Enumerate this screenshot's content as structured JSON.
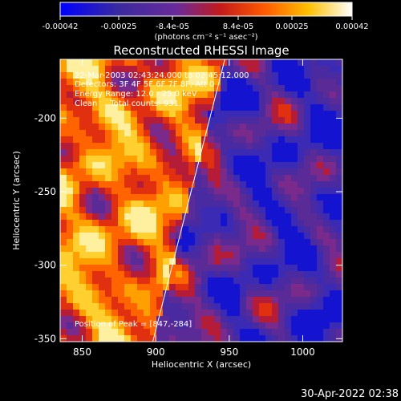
{
  "colorbar": {
    "tick_labels": [
      "-0.00042",
      "-0.00025",
      "-8.4e-05",
      "8.4e-05",
      "0.00025",
      "0.00042"
    ],
    "unit_label": "(photons cm⁻² s⁻¹ asec⁻²)",
    "range": [
      -0.00042,
      0.00042
    ]
  },
  "chart_data": {
    "type": "heatmap",
    "title": "Reconstructed RHESSI Image",
    "xlabel": "Heliocentric X (arcsec)",
    "ylabel": "Heliocentric Y (arcsec)",
    "xlim": [
      835,
      1027
    ],
    "ylim": [
      -352,
      -160
    ],
    "x_ticks": [
      850,
      900,
      950,
      1000
    ],
    "x_tick_labels": [
      "850",
      "900",
      "950",
      "1000"
    ],
    "y_ticks": [
      -200,
      -250,
      -300,
      -350
    ],
    "y_tick_labels": [
      "-200",
      "-250",
      "-300",
      "-350"
    ],
    "colormap": "rainbow-like (blue → purple → red → orange → yellow → white)",
    "annotations": [
      "22-Mar-2003 02:43:24.000 to 02:45:12.000",
      "Detectors: 3F 4F 5F 6F 7F 8F, Att 0",
      "Energy Range: 12.0 - 25.0 keV",
      "Clean     Total counts: 931."
    ],
    "peak_label": "Position of Peak = [847,-284]",
    "peak_position": [
      847,
      -284
    ],
    "limb_line": [
      [
        898,
        -352
      ],
      [
        947,
        -160
      ]
    ],
    "grid": false
  },
  "footer": {
    "timestamp": "30-Apr-2022 02:38"
  }
}
